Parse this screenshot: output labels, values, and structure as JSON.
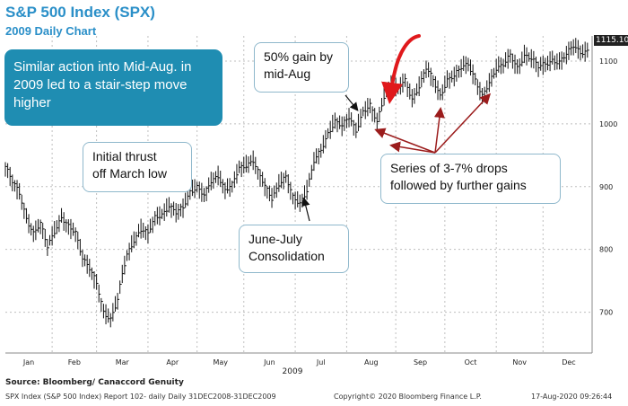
{
  "header": {
    "title": "S&P 500 Index (SPX)",
    "subtitle": "2009 Daily Chart"
  },
  "annotations": {
    "teal_box": "Similar action into Mid-Aug. in\n2009 led to a stair-step move\nhigher",
    "thrust": "Initial thrust\noff March low",
    "gain": "50% gain by\nmid-Aug",
    "consolidation": "June-July\nConsolidation",
    "drops": "Series of 3-7% drops\nfollowed by further gains"
  },
  "last_price_label": "1115.10",
  "footer": {
    "source": "Source: Bloomberg/ Canaccord Genuity",
    "left": "SPX Index (S&P 500 Index) Report 102- daily  Daily 31DEC2008-31DEC2009",
    "center": "Copyright© 2020 Bloomberg Finance L.P.",
    "right": "17-Aug-2020 09:26:44"
  },
  "colors": {
    "title": "#2a8fc8",
    "teal_box": "#1f8db2",
    "callout_border": "#8fb8cc",
    "arrows": "#9b1c1c",
    "highlight_arrow": "#e0191c",
    "bars": "#111111"
  },
  "chart_data": {
    "type": "line",
    "title": "S&P 500 Index (SPX)",
    "subtitle": "2009 Daily Chart",
    "xlabel": "2009",
    "ylabel": "",
    "y_ticks": [
      700,
      800,
      900,
      1000,
      1100
    ],
    "x_tick_labels": [
      "Jan",
      "Feb",
      "Mar",
      "Apr",
      "May",
      "Jun",
      "Jul",
      "Aug",
      "Sep",
      "Oct",
      "Nov",
      "Dec"
    ],
    "ylim": [
      635,
      1140
    ],
    "xlim": [
      0,
      251
    ],
    "grid": true,
    "series": [
      {
        "x": [
          0,
          3,
          6,
          9,
          12,
          15,
          18,
          21,
          24,
          27,
          30,
          33,
          36,
          39,
          42,
          45,
          48,
          50,
          52,
          55,
          58,
          61,
          64,
          67,
          70,
          73,
          76,
          79,
          82,
          85,
          88,
          91,
          94,
          97,
          100,
          103,
          106,
          108,
          111,
          114,
          117,
          120,
          123,
          126,
          129,
          132,
          135,
          138,
          141,
          144,
          147,
          150,
          153,
          156,
          159,
          162,
          165,
          168,
          171,
          174,
          177,
          180,
          183,
          186,
          189,
          192,
          195,
          198,
          201,
          204,
          207,
          210,
          213,
          216,
          219,
          222,
          225,
          228,
          231,
          234,
          237,
          240,
          243,
          246,
          249
        ],
        "values": [
          932,
          907,
          890,
          850,
          825,
          840,
          805,
          830,
          850,
          835,
          827,
          788,
          770,
          745,
          700,
          690,
          720,
          760,
          790,
          815,
          833,
          825,
          850,
          856,
          870,
          858,
          866,
          893,
          900,
          885,
          908,
          918,
          895,
          902,
          929,
          935,
          942,
          923,
          900,
          882,
          905,
          915,
          882,
          874,
          895,
          940,
          957,
          985,
          1005,
          996,
          1010,
          990,
          1020,
          1028,
          1002,
          1045,
          1065,
          1057,
          1068,
          1040,
          1060,
          1088,
          1070,
          1045,
          1070,
          1075,
          1090,
          1097,
          1070,
          1042,
          1065,
          1090,
          1095,
          1108,
          1088,
          1110,
          1105,
          1090,
          1095,
          1102,
          1098,
          1110,
          1125,
          1115,
          1115
        ]
      }
    ]
  }
}
